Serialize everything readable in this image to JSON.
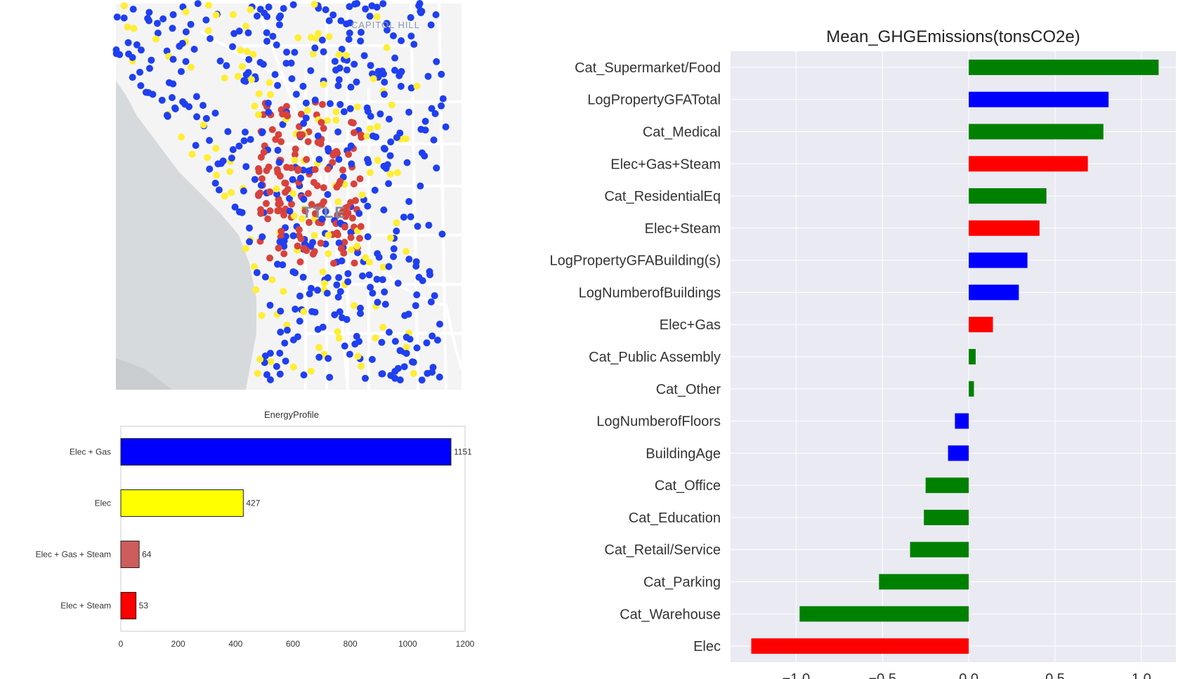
{
  "map": {
    "labels": [
      "CAPITOL HILL",
      "TTLE"
    ],
    "colors": {
      "water": "#d7dadc",
      "land": "#f4f4f4",
      "road": "#ffffff",
      "blue": "#1f3ff0",
      "yellow": "#ffee33",
      "red": "#d8423c"
    }
  },
  "chart_data": [
    {
      "type": "bar",
      "orientation": "horizontal",
      "title": "EnergyProfile",
      "categories": [
        "Elec + Gas",
        "Elec",
        "Elec + Gas + Steam",
        "Elec + Steam"
      ],
      "values": [
        1151,
        427,
        64,
        53
      ],
      "colors": [
        "#0000ff",
        "#ffff00",
        "#cd5c5c",
        "#ff0000"
      ],
      "xlim": [
        0,
        1200
      ],
      "xticks": [
        0,
        200,
        400,
        600,
        800,
        1000,
        1200
      ],
      "xlabel": "",
      "ylabel": "",
      "grid": false
    },
    {
      "type": "bar",
      "orientation": "horizontal",
      "title": "Mean_GHGEmissions(tonsCO2e)",
      "categories": [
        "Cat_Supermarket/Food",
        "LogPropertyGFATotal",
        "Cat_Medical",
        "Elec+Gas+Steam",
        "Cat_ResidentialEq",
        "Elec+Steam",
        "LogPropertyGFABuilding(s)",
        "LogNumberofBuildings",
        "Elec+Gas",
        "Cat_Public Assembly",
        "Cat_Other",
        "LogNumberofFloors",
        "BuildingAge",
        "Cat_Office",
        "Cat_Education",
        "Cat_Retail/Service",
        "Cat_Parking",
        "Cat_Warehouse",
        "Elec"
      ],
      "values": [
        1.1,
        0.81,
        0.78,
        0.69,
        0.45,
        0.41,
        0.34,
        0.29,
        0.14,
        0.04,
        0.03,
        -0.08,
        -0.12,
        -0.25,
        -0.26,
        -0.34,
        -0.52,
        -0.98,
        -1.26
      ],
      "colors": [
        "#008000",
        "#0000ff",
        "#008000",
        "#ff0000",
        "#008000",
        "#ff0000",
        "#0000ff",
        "#0000ff",
        "#ff0000",
        "#008000",
        "#008000",
        "#0000ff",
        "#0000ff",
        "#008000",
        "#008000",
        "#008000",
        "#008000",
        "#008000",
        "#ff0000"
      ],
      "xlim": [
        -1.38,
        1.2
      ],
      "xticks": [
        -1.0,
        -0.5,
        0.0,
        0.5,
        1.0
      ],
      "xtick_labels": [
        "−1.0",
        "−0.5",
        "0.0",
        "0.5",
        "1.0"
      ],
      "xlabel": "",
      "ylabel": "",
      "grid": true,
      "background": "#eaeaf2"
    }
  ]
}
